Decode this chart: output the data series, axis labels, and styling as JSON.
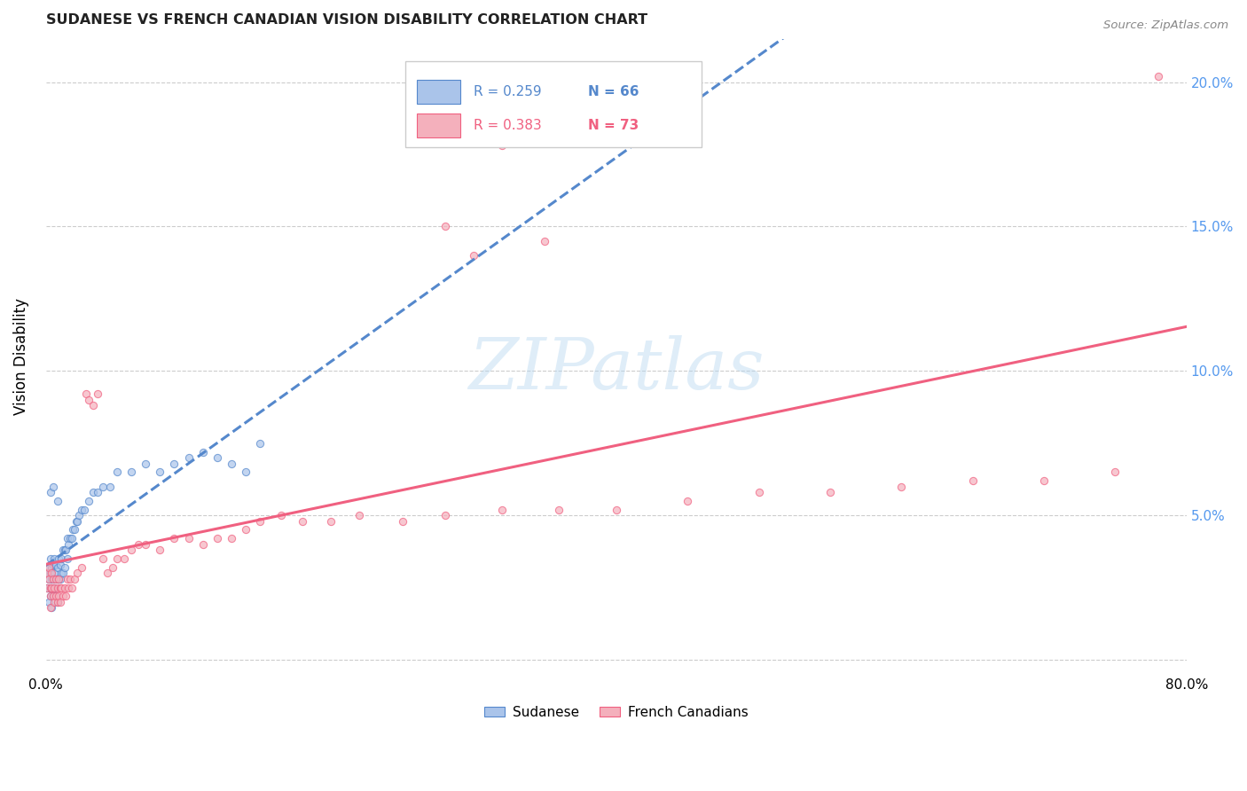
{
  "title": "SUDANESE VS FRENCH CANADIAN VISION DISABILITY CORRELATION CHART",
  "source": "Source: ZipAtlas.com",
  "ylabel": "Vision Disability",
  "watermark": "ZIPatlas",
  "xlim": [
    0.0,
    0.8
  ],
  "ylim": [
    -0.005,
    0.215
  ],
  "xticks": [
    0.0,
    0.1,
    0.2,
    0.3,
    0.4,
    0.5,
    0.6,
    0.7,
    0.8
  ],
  "xticklabels": [
    "0.0%",
    "",
    "",
    "",
    "",
    "",
    "",
    "",
    "80.0%"
  ],
  "yticks": [
    0.0,
    0.05,
    0.1,
    0.15,
    0.2
  ],
  "yticklabels_left": [
    "",
    "",
    "",
    "",
    ""
  ],
  "yticklabels_right": [
    "",
    "5.0%",
    "10.0%",
    "15.0%",
    "20.0%"
  ],
  "legend_r1": "R = 0.259",
  "legend_n1": "N = 66",
  "legend_r2": "R = 0.383",
  "legend_n2": "N = 73",
  "color_sudanese": "#aac4ea",
  "color_french": "#f4b0bc",
  "line_color_sudanese": "#5588cc",
  "line_color_french": "#f06080",
  "tick_color": "#5599ee",
  "marker_size": 35,
  "sudanese_x": [
    0.001,
    0.001,
    0.002,
    0.002,
    0.002,
    0.003,
    0.003,
    0.003,
    0.003,
    0.004,
    0.004,
    0.004,
    0.005,
    0.005,
    0.005,
    0.006,
    0.006,
    0.006,
    0.007,
    0.007,
    0.007,
    0.008,
    0.008,
    0.008,
    0.009,
    0.009,
    0.01,
    0.01,
    0.011,
    0.011,
    0.012,
    0.012,
    0.013,
    0.013,
    0.014,
    0.015,
    0.015,
    0.016,
    0.017,
    0.018,
    0.019,
    0.02,
    0.021,
    0.022,
    0.023,
    0.025,
    0.027,
    0.03,
    0.033,
    0.036,
    0.04,
    0.045,
    0.05,
    0.06,
    0.07,
    0.08,
    0.09,
    0.1,
    0.11,
    0.12,
    0.13,
    0.14,
    0.15,
    0.003,
    0.005,
    0.008
  ],
  "sudanese_y": [
    0.03,
    0.025,
    0.032,
    0.028,
    0.02,
    0.035,
    0.03,
    0.025,
    0.022,
    0.032,
    0.028,
    0.018,
    0.033,
    0.028,
    0.022,
    0.035,
    0.03,
    0.025,
    0.033,
    0.028,
    0.022,
    0.032,
    0.028,
    0.02,
    0.035,
    0.028,
    0.033,
    0.028,
    0.035,
    0.03,
    0.038,
    0.03,
    0.038,
    0.032,
    0.038,
    0.042,
    0.035,
    0.04,
    0.042,
    0.042,
    0.045,
    0.045,
    0.048,
    0.048,
    0.05,
    0.052,
    0.052,
    0.055,
    0.058,
    0.058,
    0.06,
    0.06,
    0.065,
    0.065,
    0.068,
    0.065,
    0.068,
    0.07,
    0.072,
    0.07,
    0.068,
    0.065,
    0.075,
    0.058,
    0.06,
    0.055
  ],
  "french_x": [
    0.001,
    0.001,
    0.002,
    0.002,
    0.003,
    0.003,
    0.003,
    0.004,
    0.004,
    0.005,
    0.005,
    0.006,
    0.006,
    0.007,
    0.007,
    0.008,
    0.008,
    0.009,
    0.009,
    0.01,
    0.01,
    0.011,
    0.012,
    0.013,
    0.014,
    0.015,
    0.016,
    0.017,
    0.018,
    0.02,
    0.022,
    0.025,
    0.028,
    0.03,
    0.033,
    0.036,
    0.04,
    0.043,
    0.047,
    0.05,
    0.055,
    0.06,
    0.065,
    0.07,
    0.08,
    0.09,
    0.1,
    0.11,
    0.12,
    0.13,
    0.14,
    0.15,
    0.165,
    0.18,
    0.2,
    0.22,
    0.25,
    0.28,
    0.32,
    0.36,
    0.4,
    0.45,
    0.5,
    0.55,
    0.6,
    0.65,
    0.7,
    0.75,
    0.78,
    0.28,
    0.3,
    0.32,
    0.35
  ],
  "french_y": [
    0.03,
    0.025,
    0.032,
    0.028,
    0.022,
    0.018,
    0.025,
    0.03,
    0.025,
    0.028,
    0.022,
    0.02,
    0.025,
    0.028,
    0.022,
    0.025,
    0.02,
    0.028,
    0.022,
    0.025,
    0.02,
    0.025,
    0.022,
    0.025,
    0.022,
    0.028,
    0.025,
    0.028,
    0.025,
    0.028,
    0.03,
    0.032,
    0.092,
    0.09,
    0.088,
    0.092,
    0.035,
    0.03,
    0.032,
    0.035,
    0.035,
    0.038,
    0.04,
    0.04,
    0.038,
    0.042,
    0.042,
    0.04,
    0.042,
    0.042,
    0.045,
    0.048,
    0.05,
    0.048,
    0.048,
    0.05,
    0.048,
    0.05,
    0.052,
    0.052,
    0.052,
    0.055,
    0.058,
    0.058,
    0.06,
    0.062,
    0.062,
    0.065,
    0.202,
    0.15,
    0.14,
    0.178,
    0.145
  ]
}
